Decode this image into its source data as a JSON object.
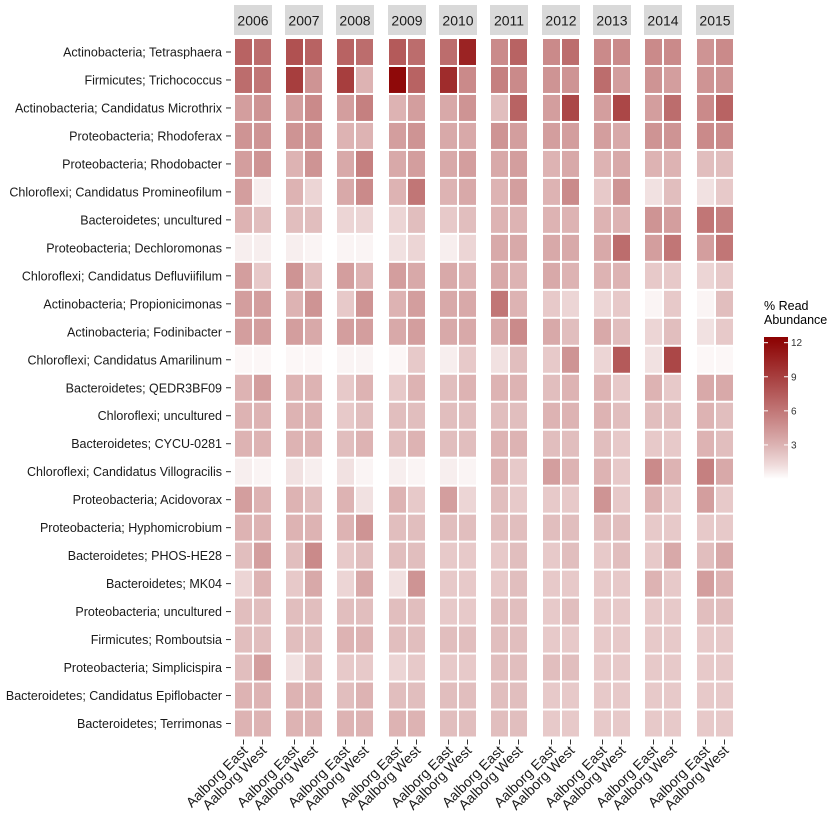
{
  "chart_data": {
    "type": "heatmap",
    "title": "",
    "xlabel": "",
    "ylabel": "",
    "years": [
      "2006",
      "2007",
      "2008",
      "2009",
      "2010",
      "2011",
      "2012",
      "2013",
      "2014",
      "2015"
    ],
    "plants": [
      "Aalborg East",
      "Aalborg West"
    ],
    "taxa": [
      "Actinobacteria; Tetrasphaera",
      "Firmicutes; Trichococcus",
      "Actinobacteria; Candidatus Microthrix",
      "Proteobacteria; Rhodoferax",
      "Proteobacteria; Rhodobacter",
      "Chloroflexi; Candidatus Promineofilum",
      "Bacteroidetes; uncultured",
      "Proteobacteria; Dechloromonas",
      "Chloroflexi; Candidatus Defluviifilum",
      "Actinobacteria; Propionicimonas",
      "Actinobacteria; Fodinibacter",
      "Chloroflexi; Candidatus Amarilinum",
      "Bacteroidetes; QEDR3BF09",
      "Chloroflexi; uncultured",
      "Bacteroidetes; CYCU-0281",
      "Chloroflexi; Candidatus Villogracilis",
      "Proteobacteria; Acidovorax",
      "Proteobacteria; Hyphomicrobium",
      "Bacteroidetes; PHOS-HE28",
      "Bacteroidetes; MK04",
      "Proteobacteria; uncultured",
      "Firmicutes; Romboutsia",
      "Proteobacteria; Simplicispira",
      "Bacteroidetes; Candidatus Epiflobacter",
      "Bacteroidetes; Terrimonas"
    ],
    "values_note": "values[taxon][year] = [Aalborg East, Aalborg West] % read abundance (estimated from color)",
    "values": [
      [
        [
          7,
          6.5
        ],
        [
          8,
          7
        ],
        [
          7,
          6.5
        ],
        [
          7.5,
          6.5
        ],
        [
          6.5,
          10.5
        ],
        [
          5,
          7
        ],
        [
          5,
          6.5
        ],
        [
          5,
          5
        ],
        [
          5,
          5
        ],
        [
          4.5,
          5
        ]
      ],
      [
        [
          6.5,
          6
        ],
        [
          9,
          4.5
        ],
        [
          9,
          3
        ],
        [
          12,
          7
        ],
        [
          10,
          5
        ],
        [
          5.5,
          5
        ],
        [
          4.5,
          4.5
        ],
        [
          6.5,
          4
        ],
        [
          4.5,
          4
        ],
        [
          4.5,
          4.5
        ]
      ],
      [
        [
          4,
          4.5
        ],
        [
          4,
          5
        ],
        [
          4,
          5.5
        ],
        [
          3,
          4
        ],
        [
          3.5,
          4.5
        ],
        [
          2.5,
          7
        ],
        [
          4,
          8.5
        ],
        [
          4,
          8.5
        ],
        [
          4,
          6.5
        ],
        [
          5,
          7
        ]
      ],
      [
        [
          4.5,
          4.5
        ],
        [
          4.5,
          4.5
        ],
        [
          3,
          3
        ],
        [
          4,
          4.5
        ],
        [
          3.5,
          3.5
        ],
        [
          4.5,
          4
        ],
        [
          4,
          4
        ],
        [
          4,
          3.5
        ],
        [
          4.5,
          4.5
        ],
        [
          5,
          5
        ]
      ],
      [
        [
          4,
          4.5
        ],
        [
          3,
          4.5
        ],
        [
          3.5,
          5.5
        ],
        [
          3.5,
          4
        ],
        [
          3.5,
          4
        ],
        [
          3.5,
          4
        ],
        [
          3,
          3.5
        ],
        [
          3,
          3.5
        ],
        [
          3,
          3
        ],
        [
          2.5,
          2.5
        ]
      ],
      [
        [
          4,
          0.5
        ],
        [
          3,
          1.5
        ],
        [
          3.5,
          5
        ],
        [
          3,
          6
        ],
        [
          3,
          3.5
        ],
        [
          3,
          4
        ],
        [
          3,
          5
        ],
        [
          2,
          4.5
        ],
        [
          1,
          2.5
        ],
        [
          1,
          2
        ]
      ],
      [
        [
          3,
          2.5
        ],
        [
          2.5,
          2.5
        ],
        [
          1.5,
          1.5
        ],
        [
          1.5,
          2.5
        ],
        [
          2,
          2.5
        ],
        [
          3,
          3
        ],
        [
          3,
          3
        ],
        [
          3,
          3
        ],
        [
          4.5,
          4
        ],
        [
          6,
          5.5
        ]
      ],
      [
        [
          0.5,
          0.5
        ],
        [
          0.5,
          0.3
        ],
        [
          0.3,
          0.3
        ],
        [
          1,
          1.5
        ],
        [
          0.5,
          1.5
        ],
        [
          3.5,
          3.5
        ],
        [
          3.5,
          3.5
        ],
        [
          3.5,
          6.5
        ],
        [
          4,
          6
        ],
        [
          4,
          6
        ]
      ],
      [
        [
          4,
          2
        ],
        [
          4.5,
          2.5
        ],
        [
          4,
          3
        ],
        [
          4,
          3.5
        ],
        [
          3.5,
          3
        ],
        [
          3.5,
          3
        ],
        [
          3.5,
          3
        ],
        [
          3,
          3
        ],
        [
          2,
          2
        ],
        [
          1.5,
          2
        ]
      ],
      [
        [
          4,
          4
        ],
        [
          3,
          4.5
        ],
        [
          2,
          4.5
        ],
        [
          3,
          4
        ],
        [
          3.5,
          3.5
        ],
        [
          6,
          3
        ],
        [
          2,
          1.5
        ],
        [
          1.5,
          2
        ],
        [
          0.3,
          2
        ],
        [
          0.3,
          2.5
        ]
      ],
      [
        [
          4,
          4
        ],
        [
          4,
          3.5
        ],
        [
          4,
          4
        ],
        [
          3.5,
          4
        ],
        [
          3.5,
          3.5
        ],
        [
          3.5,
          5
        ],
        [
          3.5,
          2.5
        ],
        [
          3.5,
          2.5
        ],
        [
          1.5,
          2.5
        ],
        [
          1,
          2
        ]
      ],
      [
        [
          0.2,
          0.2
        ],
        [
          0.2,
          0.2
        ],
        [
          0.3,
          0.3
        ],
        [
          0.2,
          2
        ],
        [
          0.5,
          2
        ],
        [
          1,
          2.5
        ],
        [
          2,
          4.5
        ],
        [
          1.5,
          7.5
        ],
        [
          1,
          8.5
        ],
        [
          0.2,
          0.2
        ]
      ],
      [
        [
          3,
          4
        ],
        [
          3,
          3
        ],
        [
          2,
          3
        ],
        [
          2,
          3
        ],
        [
          2.5,
          3
        ],
        [
          3,
          3
        ],
        [
          2.5,
          3
        ],
        [
          3,
          2
        ],
        [
          3,
          2
        ],
        [
          3.5,
          3.5
        ]
      ],
      [
        [
          3,
          3
        ],
        [
          3,
          3
        ],
        [
          2,
          2.5
        ],
        [
          2.5,
          2.5
        ],
        [
          2.5,
          2.5
        ],
        [
          2.5,
          2.5
        ],
        [
          3,
          3
        ],
        [
          3,
          2.5
        ],
        [
          2.5,
          2.5
        ],
        [
          3,
          2.5
        ]
      ],
      [
        [
          3,
          3
        ],
        [
          3,
          3
        ],
        [
          2.5,
          3
        ],
        [
          2.5,
          3
        ],
        [
          2.5,
          2.5
        ],
        [
          3,
          3
        ],
        [
          2.5,
          2.5
        ],
        [
          2.5,
          2
        ],
        [
          2,
          2
        ],
        [
          3,
          2.5
        ]
      ],
      [
        [
          0.5,
          0.3
        ],
        [
          1,
          0.5
        ],
        [
          1,
          0.3
        ],
        [
          0.5,
          0.3
        ],
        [
          0.5,
          0.3
        ],
        [
          3,
          2
        ],
        [
          4,
          3
        ],
        [
          3,
          2
        ],
        [
          5,
          3
        ],
        [
          5.5,
          3.5
        ]
      ],
      [
        [
          4,
          3
        ],
        [
          3,
          2.5
        ],
        [
          3,
          1
        ],
        [
          3,
          2
        ],
        [
          4,
          1.5
        ],
        [
          2.5,
          2
        ],
        [
          2,
          2
        ],
        [
          4.5,
          2
        ],
        [
          3,
          2
        ],
        [
          4,
          2
        ]
      ],
      [
        [
          3,
          3
        ],
        [
          3,
          3
        ],
        [
          3,
          4.5
        ],
        [
          2.5,
          2.5
        ],
        [
          2.5,
          2.5
        ],
        [
          2.5,
          2.5
        ],
        [
          2.5,
          2.5
        ],
        [
          2.5,
          2.5
        ],
        [
          2,
          2
        ],
        [
          2,
          2
        ]
      ],
      [
        [
          2.5,
          4
        ],
        [
          2.5,
          5
        ],
        [
          2,
          2.5
        ],
        [
          2.5,
          2.5
        ],
        [
          2,
          2
        ],
        [
          2,
          2.5
        ],
        [
          2,
          2.5
        ],
        [
          2,
          2.5
        ],
        [
          2,
          3.5
        ],
        [
          2.5,
          3.5
        ]
      ],
      [
        [
          1.5,
          3
        ],
        [
          2,
          3.5
        ],
        [
          1.5,
          3.5
        ],
        [
          1,
          4.5
        ],
        [
          2,
          2
        ],
        [
          2,
          2.5
        ],
        [
          2,
          2
        ],
        [
          2,
          2
        ],
        [
          3,
          2
        ],
        [
          4,
          3
        ]
      ],
      [
        [
          2.5,
          2.5
        ],
        [
          2.5,
          2.5
        ],
        [
          2.5,
          2.5
        ],
        [
          2.5,
          2.5
        ],
        [
          2,
          2
        ],
        [
          2.5,
          2.5
        ],
        [
          2,
          2.5
        ],
        [
          2,
          2
        ],
        [
          2,
          2
        ],
        [
          2.5,
          2.5
        ]
      ],
      [
        [
          2.5,
          2.5
        ],
        [
          2.5,
          2.5
        ],
        [
          3,
          3
        ],
        [
          2.5,
          2.5
        ],
        [
          2.5,
          2.5
        ],
        [
          2.5,
          2.5
        ],
        [
          2,
          2
        ],
        [
          2,
          2
        ],
        [
          2,
          2
        ],
        [
          2,
          2
        ]
      ],
      [
        [
          2.5,
          4
        ],
        [
          1,
          2.5
        ],
        [
          2,
          2
        ],
        [
          1.5,
          2
        ],
        [
          2,
          2
        ],
        [
          2.5,
          2.5
        ],
        [
          2.5,
          2.5
        ],
        [
          2,
          2
        ],
        [
          2,
          2
        ],
        [
          2,
          2
        ]
      ],
      [
        [
          3,
          3
        ],
        [
          3,
          3
        ],
        [
          2.5,
          3
        ],
        [
          2.5,
          2.5
        ],
        [
          2.5,
          2.5
        ],
        [
          2.5,
          2.5
        ],
        [
          2,
          2
        ],
        [
          2,
          2
        ],
        [
          2,
          2
        ],
        [
          2,
          2
        ]
      ],
      [
        [
          3,
          3
        ],
        [
          3,
          3
        ],
        [
          3,
          3
        ],
        [
          3,
          3
        ],
        [
          2.5,
          2.5
        ],
        [
          2.5,
          2.5
        ],
        [
          2,
          2
        ],
        [
          2,
          2
        ],
        [
          2,
          2
        ],
        [
          2,
          2
        ]
      ]
    ],
    "legend": {
      "title_lines": [
        "% Read",
        "Abundance"
      ],
      "ticks": [
        3,
        6,
        9,
        12
      ],
      "range": [
        0,
        12.5
      ],
      "low_color": "#ffffff",
      "high_color": "#8b0000",
      "placement": "right"
    },
    "colors": {
      "strip_background": "#d9d9d9",
      "tick_color": "#333333"
    }
  }
}
